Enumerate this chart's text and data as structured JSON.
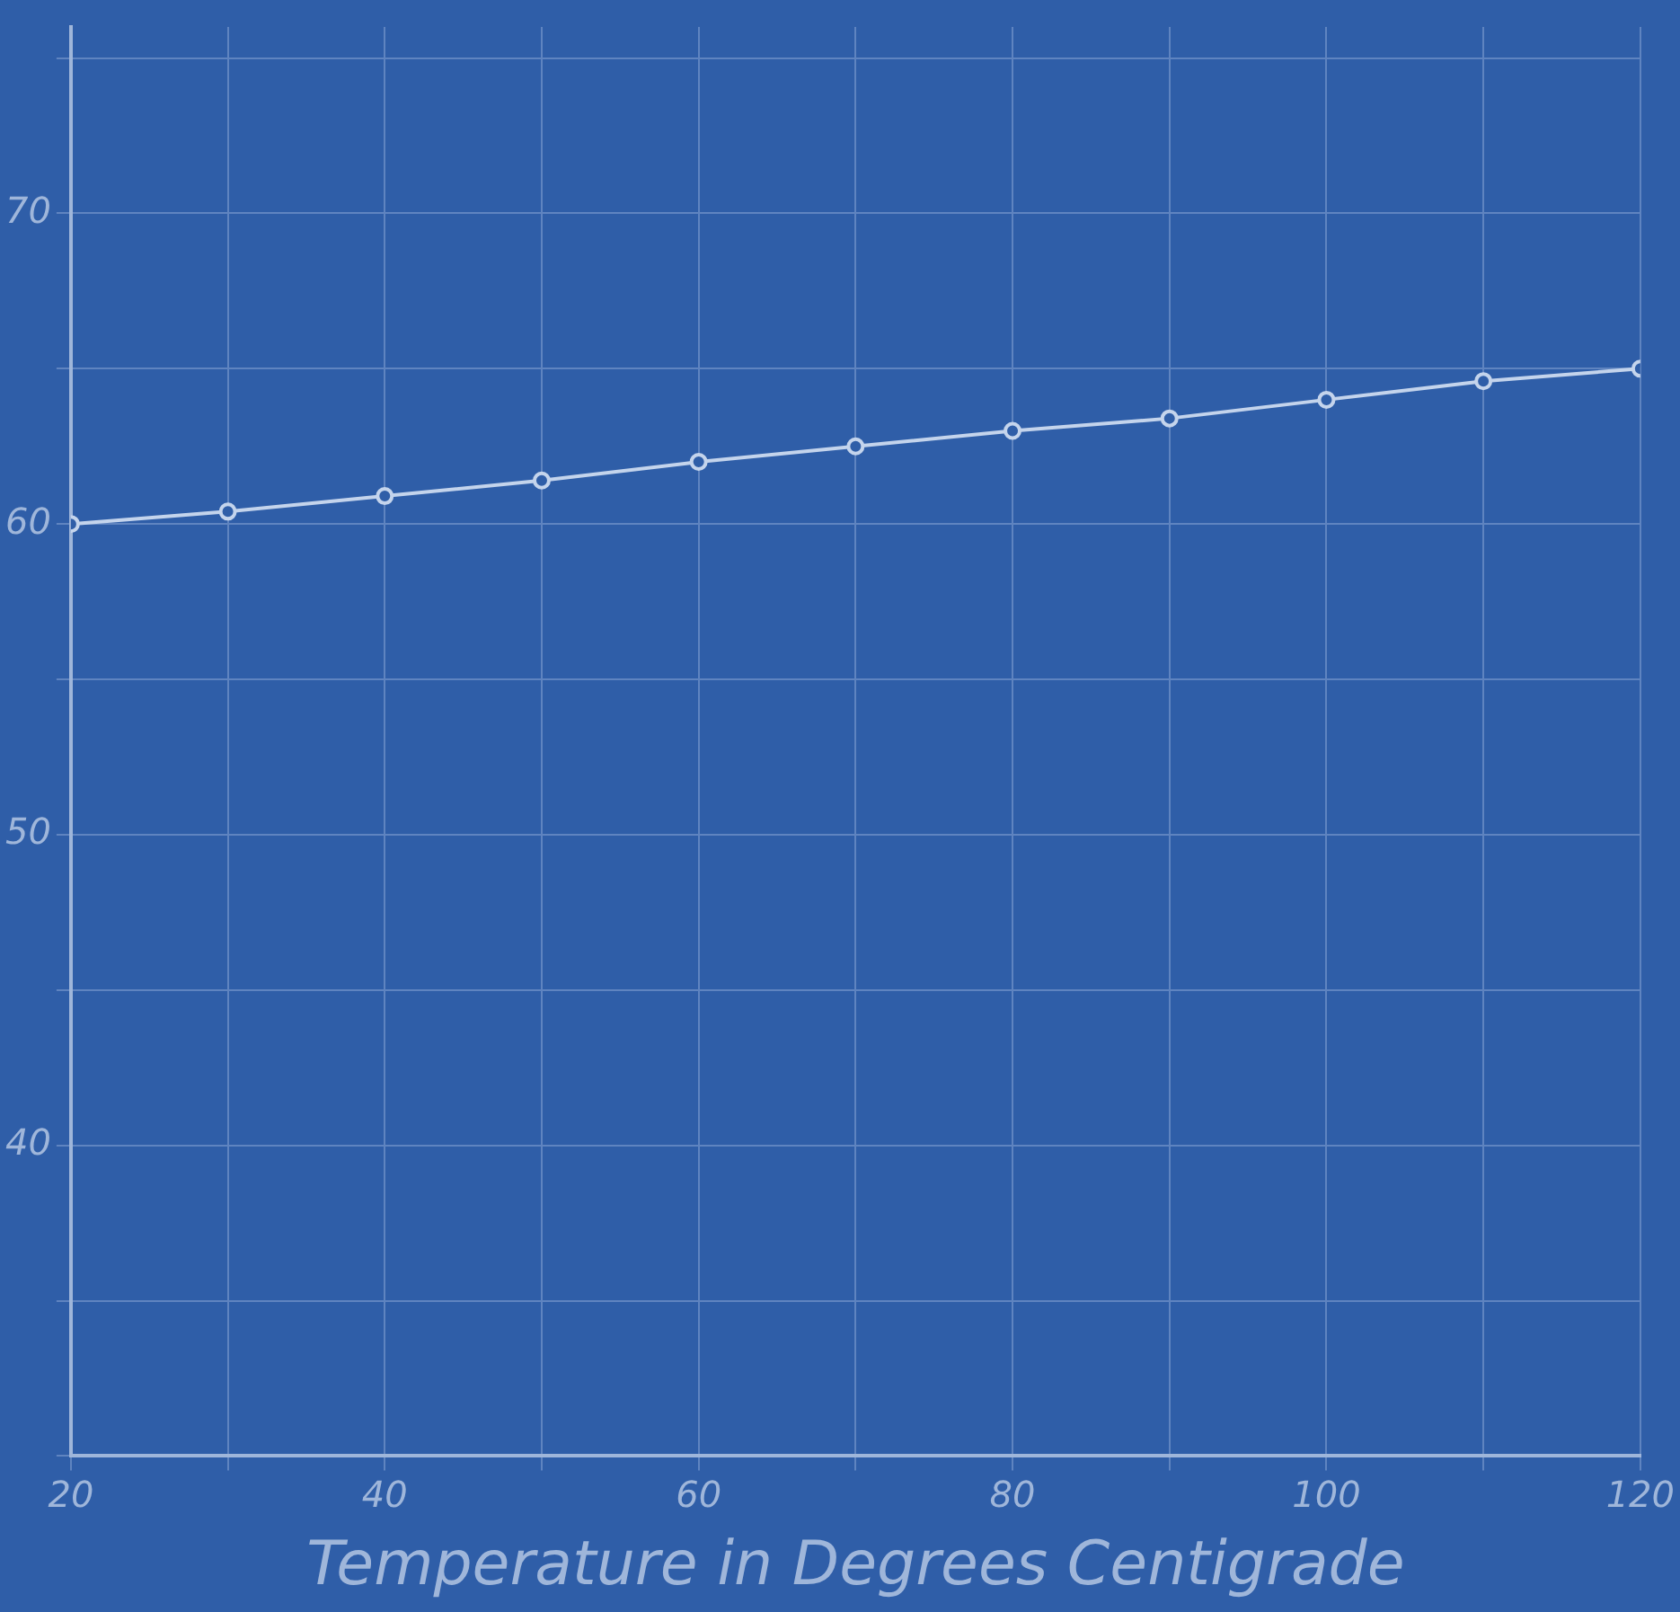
{
  "chart_data": {
    "type": "line",
    "xlabel": "Temperature in Degrees Centigrade",
    "x": [
      20,
      30,
      40,
      50,
      60,
      70,
      80,
      90,
      100,
      110,
      120
    ],
    "series": [
      {
        "color": "#c4d4ec",
        "values": [
          60.0,
          60.4,
          60.9,
          61.4,
          62.0,
          62.5,
          63.0,
          63.4,
          64.0,
          64.6,
          65.0
        ]
      }
    ],
    "xlim": [
      20,
      120
    ],
    "ylim": [
      30,
      76
    ],
    "xticks": [
      20,
      {
        "value": 30,
        "label": null
      },
      40,
      {
        "value": 50,
        "label": null
      },
      60,
      {
        "value": 70,
        "label": null
      },
      80,
      {
        "value": 90,
        "label": null
      },
      100,
      {
        "value": 110,
        "label": null
      },
      120
    ],
    "yticks": [
      {
        "value": 30,
        "label": null
      },
      {
        "value": 35,
        "label": null
      },
      40,
      {
        "value": 45,
        "label": null
      },
      50,
      {
        "value": 55,
        "label": null
      },
      60,
      {
        "value": 65,
        "label": null
      },
      70,
      {
        "value": 75,
        "label": null
      }
    ],
    "grid": true,
    "marker": "circle",
    "legend": false
  }
}
